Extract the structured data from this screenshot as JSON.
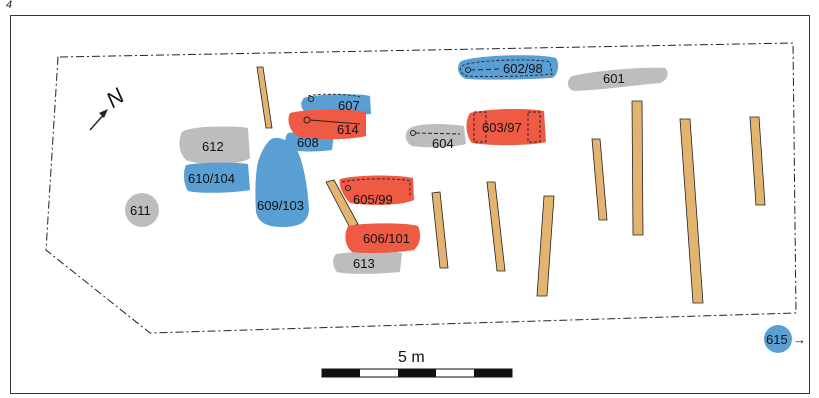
{
  "figure": {
    "number": "4"
  },
  "north_label": "N",
  "scale_bar": {
    "label": "5 m",
    "segments": 5
  },
  "colors": {
    "beam": "#e3b46f",
    "red": "#ee5a43",
    "blue": "#5a9fd4",
    "gray": "#bdbdbe",
    "outline": "#222222"
  },
  "features": {
    "f601": "601",
    "f602": "602/98",
    "f603": "603/97",
    "f604": "604",
    "f605": "605/99",
    "f606": "606/101",
    "f607": "607",
    "f608": "608",
    "f609": "609/103",
    "f610": "610/104",
    "f611": "611",
    "f612": "612",
    "f613": "613",
    "f614": "614",
    "f615": "615"
  },
  "arrow_glyph": "→"
}
